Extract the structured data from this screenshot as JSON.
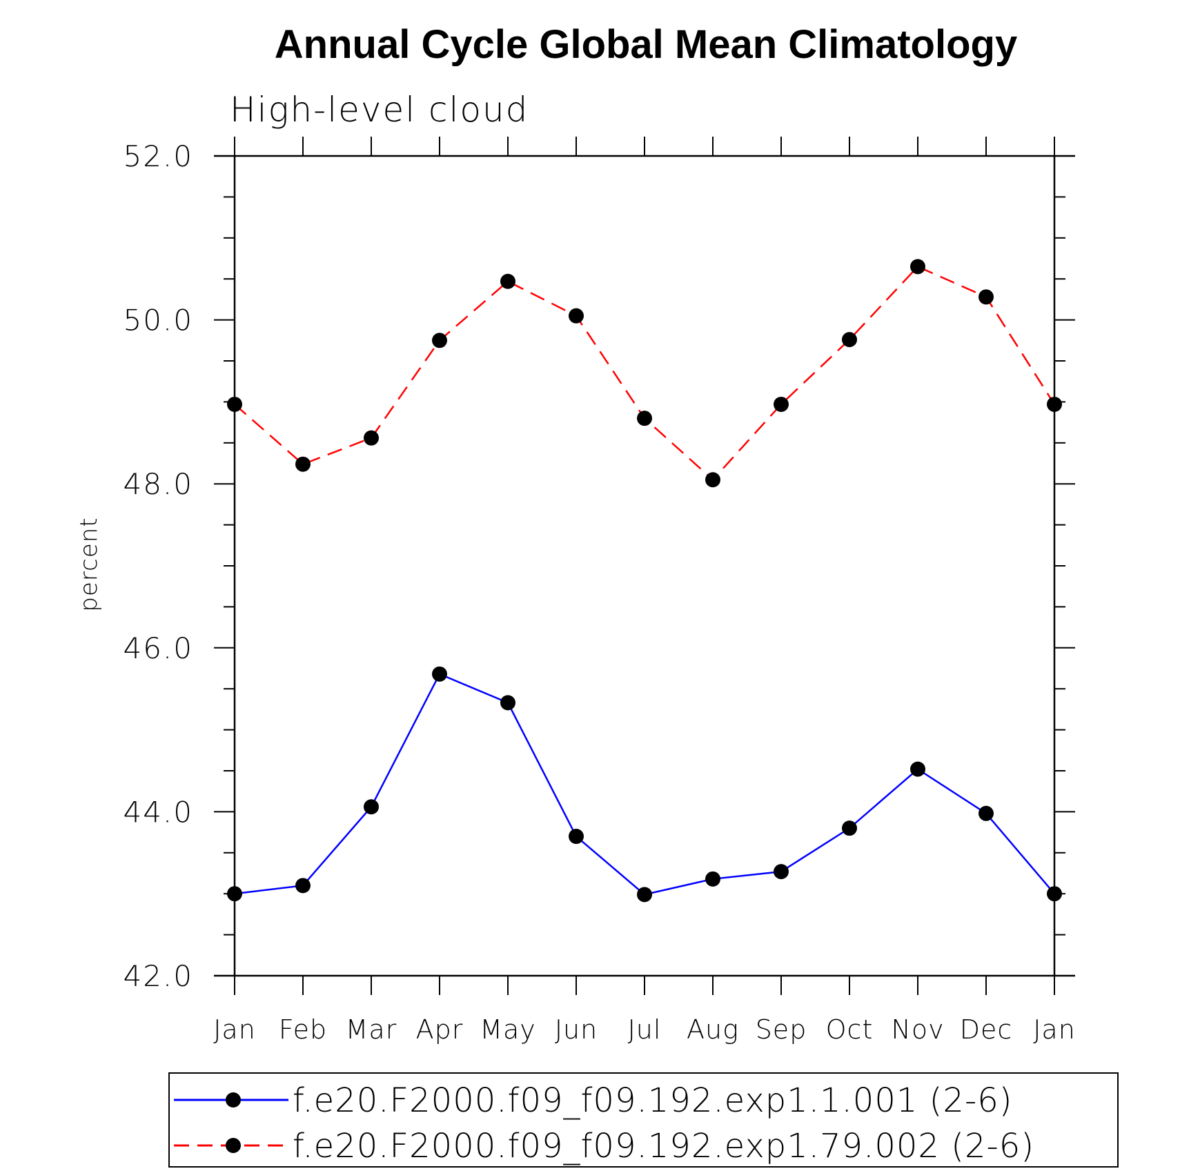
{
  "chart_data": {
    "type": "line",
    "title": "Annual Cycle Global Mean Climatology",
    "subtitle": "High-level cloud",
    "xlabel": "",
    "ylabel": "percent",
    "ylim": [
      42.0,
      52.0
    ],
    "yticks": [
      "42.0",
      "44.0",
      "46.0",
      "48.0",
      "50.0",
      "52.0"
    ],
    "categories": [
      "Jan",
      "Feb",
      "Mar",
      "Apr",
      "May",
      "Jun",
      "Jul",
      "Aug",
      "Sep",
      "Oct",
      "Nov",
      "Dec",
      "Jan"
    ],
    "legend_position": "bottom",
    "series": [
      {
        "name": "f.e20.F2000.f09_f09.192.exp1.1.001 (2-6)",
        "color": "#0000ff",
        "dash": "solid",
        "values": [
          43.0,
          43.1,
          44.06,
          45.68,
          45.33,
          43.7,
          42.99,
          43.18,
          43.27,
          43.8,
          44.52,
          43.98,
          43.0
        ]
      },
      {
        "name": "f.e20.F2000.f09_f09.192.exp1.79.002 (2-6)",
        "color": "#ff0000",
        "dash": "dashed",
        "values": [
          48.97,
          48.24,
          48.56,
          49.75,
          50.47,
          50.05,
          48.8,
          48.05,
          48.97,
          49.76,
          50.65,
          50.28,
          48.97
        ]
      }
    ]
  }
}
